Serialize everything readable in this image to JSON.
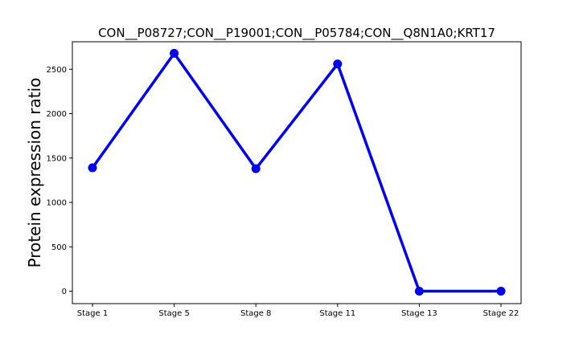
{
  "chart_data": {
    "type": "line",
    "title": "CON__P08727;CON__P19001;CON__P05784;CON__Q8N1A0;KRT17",
    "xlabel": "",
    "ylabel": "Protein expression ratio",
    "categories": [
      "Stage 1",
      "Stage 5",
      "Stage 8",
      "Stage 11",
      "Stage 13",
      "Stage 22"
    ],
    "series": [
      {
        "values": [
          1390,
          2680,
          1380,
          2560,
          0,
          0
        ]
      }
    ],
    "ylim": [
      -140,
      2810
    ],
    "yticks": [
      0,
      500,
      1000,
      1500,
      2000,
      2500
    ],
    "grid": false,
    "line_color": "#0000ee"
  }
}
